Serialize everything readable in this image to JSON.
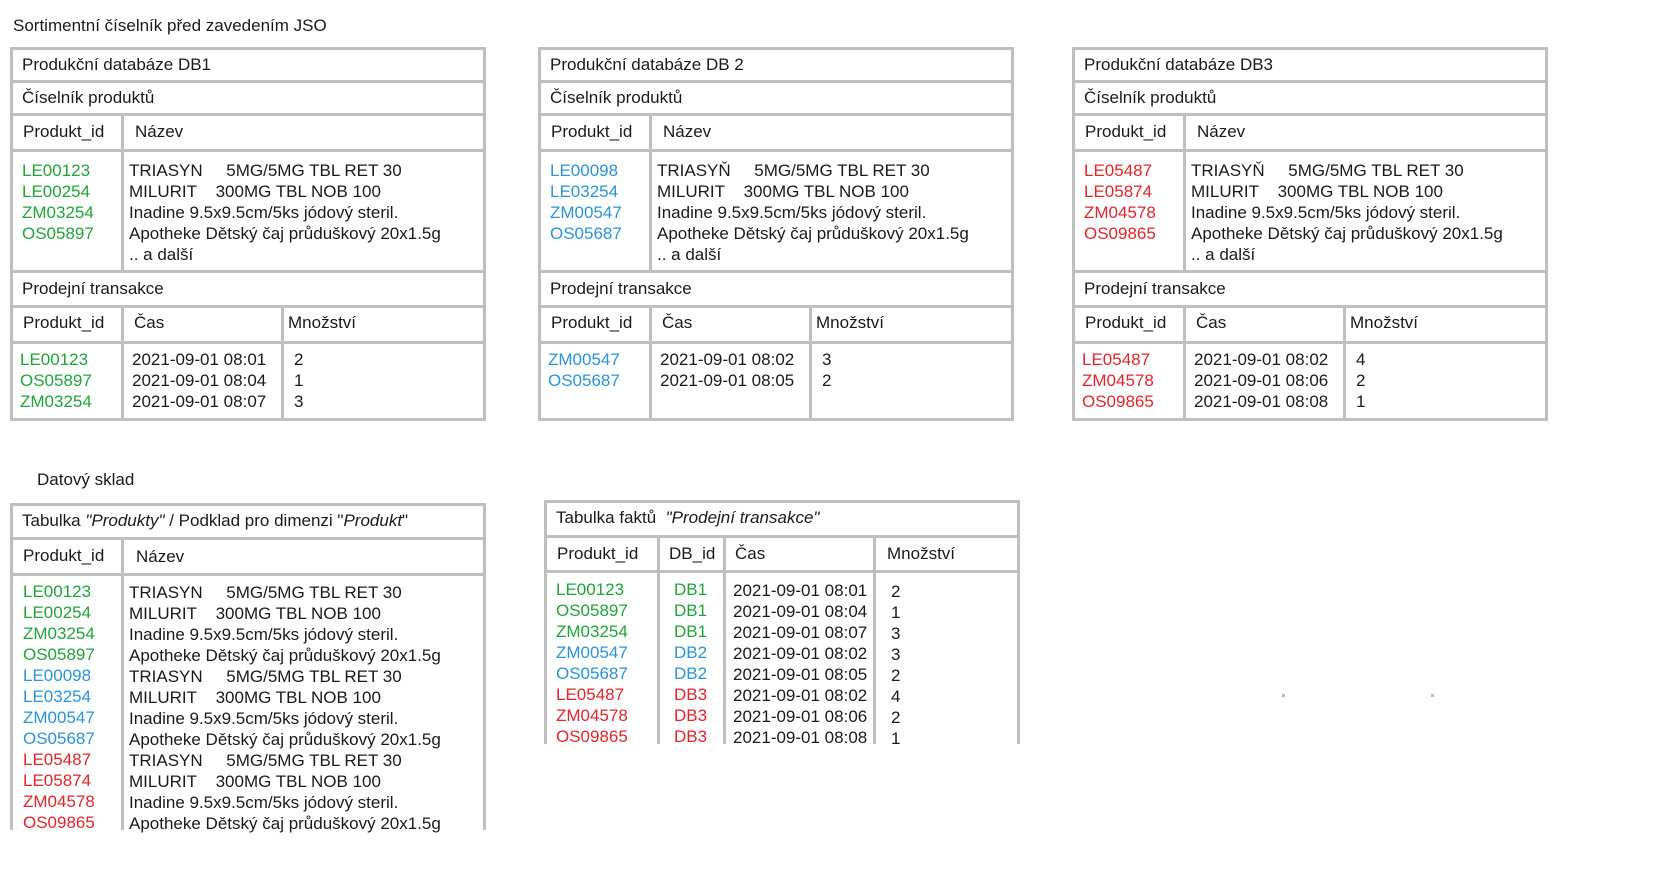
{
  "page_title": "Sortimentní číselník před zavedením JSO",
  "colors": {
    "db1": "#22a339",
    "db2": "#2b93d6",
    "db3": "#e0252b",
    "border": "#bfbfbf"
  },
  "databases": [
    {
      "title": "Produkční databáze DB1",
      "catalog_title": "Číselník produktů",
      "catalog_headers": [
        "Produkt_id",
        "Název"
      ],
      "product_ids": [
        "LE00123",
        "LE00254",
        "ZM03254",
        "OS05897"
      ],
      "product_names": [
        "TRIASYN     5MG/5MG TBL RET 30",
        "MILURIT    300MG TBL NOB 100",
        "Inadine 9.5x9.5cm/5ks jódový steril.",
        "Apotheke Dětský čaj průduškový 20x1.5g",
        ".. a další"
      ],
      "sales_title": "Prodejní transakce",
      "sales_headers": [
        "Produkt_id",
        "Čas",
        "Množství"
      ],
      "sales_ids": [
        "LE00123",
        "OS05897",
        "ZM03254"
      ],
      "sales_times": [
        "2021-09-01 08:01",
        "2021-09-01 08:04",
        "2021-09-01 08:07"
      ],
      "sales_qty": [
        "2",
        "1",
        "3"
      ]
    },
    {
      "title": "Produkční databáze  DB 2",
      "catalog_title": "Číselník produktů",
      "catalog_headers": [
        "Produkt_id",
        "Název"
      ],
      "product_ids": [
        "LE00098",
        "LE03254",
        "ZM00547",
        "OS05687"
      ],
      "product_names": [
        "TRIASYŇ     5MG/5MG TBL RET 30",
        "MILURIT    300MG TBL NOB 100",
        "Inadine 9.5x9.5cm/5ks jódový steril.",
        "Apotheke Dětský čaj průduškový 20x1.5g",
        ".. a další"
      ],
      "sales_title": "Prodejní transakce",
      "sales_headers": [
        "Produkt_id",
        "Čas",
        "Množství"
      ],
      "sales_ids": [
        "ZM00547",
        "OS05687"
      ],
      "sales_times": [
        "2021-09-01 08:02",
        "2021-09-01 08:05"
      ],
      "sales_qty": [
        "3",
        "2"
      ]
    },
    {
      "title": "Produkční databáze  DB3",
      "catalog_title": "Číselník produktů",
      "catalog_headers": [
        "Produkt_id",
        "Název"
      ],
      "product_ids": [
        "LE05487",
        "LE05874",
        "ZM04578",
        "OS09865"
      ],
      "product_names": [
        "TRIASYŇ     5MG/5MG TBL RET 30",
        "MILURIT    300MG TBL NOB 100",
        "Inadine 9.5x9.5cm/5ks jódový steril.",
        "Apotheke Dětský čaj průduškový 20x1.5g",
        ".. a další"
      ],
      "sales_title": "Prodejní transakce",
      "sales_headers": [
        "Produkt_id",
        "Čas",
        "Množství"
      ],
      "sales_ids": [
        "LE05487",
        "ZM04578",
        "OS09865"
      ],
      "sales_times": [
        "2021-09-01 08:02",
        "2021-09-01 08:06",
        "2021-09-01 08:08"
      ],
      "sales_qty": [
        "4",
        "2",
        "1"
      ]
    }
  ],
  "warehouse": {
    "label": "Datový sklad",
    "products_table": {
      "title_prefix": "Tabulka ",
      "title_italic1": "\"Produkty\"",
      "title_middle": " / Podklad pro dimenzi \"",
      "title_italic2": "Produkt",
      "title_suffix": "\"",
      "headers": [
        "Produkt_id",
        "Název"
      ],
      "rows": [
        {
          "id": "LE00123",
          "name": "TRIASYN     5MG/5MG TBL RET 30",
          "color": "green"
        },
        {
          "id": "LE00254",
          "name": "MILURIT    300MG TBL NOB 100",
          "color": "green"
        },
        {
          "id": "ZM03254",
          "name": "Inadine 9.5x9.5cm/5ks jódový steril.",
          "color": "green"
        },
        {
          "id": "OS05897",
          "name": "Apotheke Dětský čaj průduškový 20x1.5g",
          "color": "green"
        },
        {
          "id": "LE00098",
          "name": "TRIASYN     5MG/5MG TBL RET 30",
          "color": "blue"
        },
        {
          "id": "LE03254",
          "name": "MILURIT    300MG TBL NOB 100",
          "color": "blue"
        },
        {
          "id": "ZM00547",
          "name": "Inadine 9.5x9.5cm/5ks jódový steril.",
          "color": "blue"
        },
        {
          "id": "OS05687",
          "name": "Apotheke Dětský čaj průduškový 20x1.5g",
          "color": "blue"
        },
        {
          "id": "LE05487",
          "name": "TRIASYN     5MG/5MG TBL RET 30",
          "color": "red"
        },
        {
          "id": "LE05874",
          "name": "MILURIT    300MG TBL NOB 100",
          "color": "red"
        },
        {
          "id": "ZM04578",
          "name": "Inadine 9.5x9.5cm/5ks jódový steril.",
          "color": "red"
        },
        {
          "id": "OS09865",
          "name": "Apotheke Dětský čaj průduškový 20x1.5g",
          "color": "red"
        }
      ]
    },
    "facts_table": {
      "title_prefix": "Tabulka faktů  ",
      "title_italic": "\"Prodejní transakce\"",
      "headers": [
        "Produkt_id",
        "DB_id",
        "Čas",
        "Množství"
      ],
      "rows": [
        {
          "id": "LE00123",
          "db": "DB1",
          "time": "2021-09-01 08:01",
          "qty": "2",
          "color": "green"
        },
        {
          "id": "OS05897",
          "db": "DB1",
          "time": "2021-09-01 08:04",
          "qty": "1",
          "color": "green"
        },
        {
          "id": "ZM03254",
          "db": "DB1",
          "time": "2021-09-01 08:07",
          "qty": "3",
          "color": "green"
        },
        {
          "id": "ZM00547",
          "db": "DB2",
          "time": "2021-09-01 08:02",
          "qty": "3",
          "color": "blue"
        },
        {
          "id": "OS05687",
          "db": "DB2",
          "time": "2021-09-01 08:05",
          "qty": "2",
          "color": "blue"
        },
        {
          "id": "LE05487",
          "db": "DB3",
          "time": "2021-09-01 08:02",
          "qty": "4",
          "color": "red"
        },
        {
          "id": "ZM04578",
          "db": "DB3",
          "time": "2021-09-01 08:06",
          "qty": "2",
          "color": "red"
        },
        {
          "id": "OS09865",
          "db": "DB3",
          "time": "2021-09-01 08:08",
          "qty": "1",
          "color": "red"
        }
      ]
    }
  }
}
